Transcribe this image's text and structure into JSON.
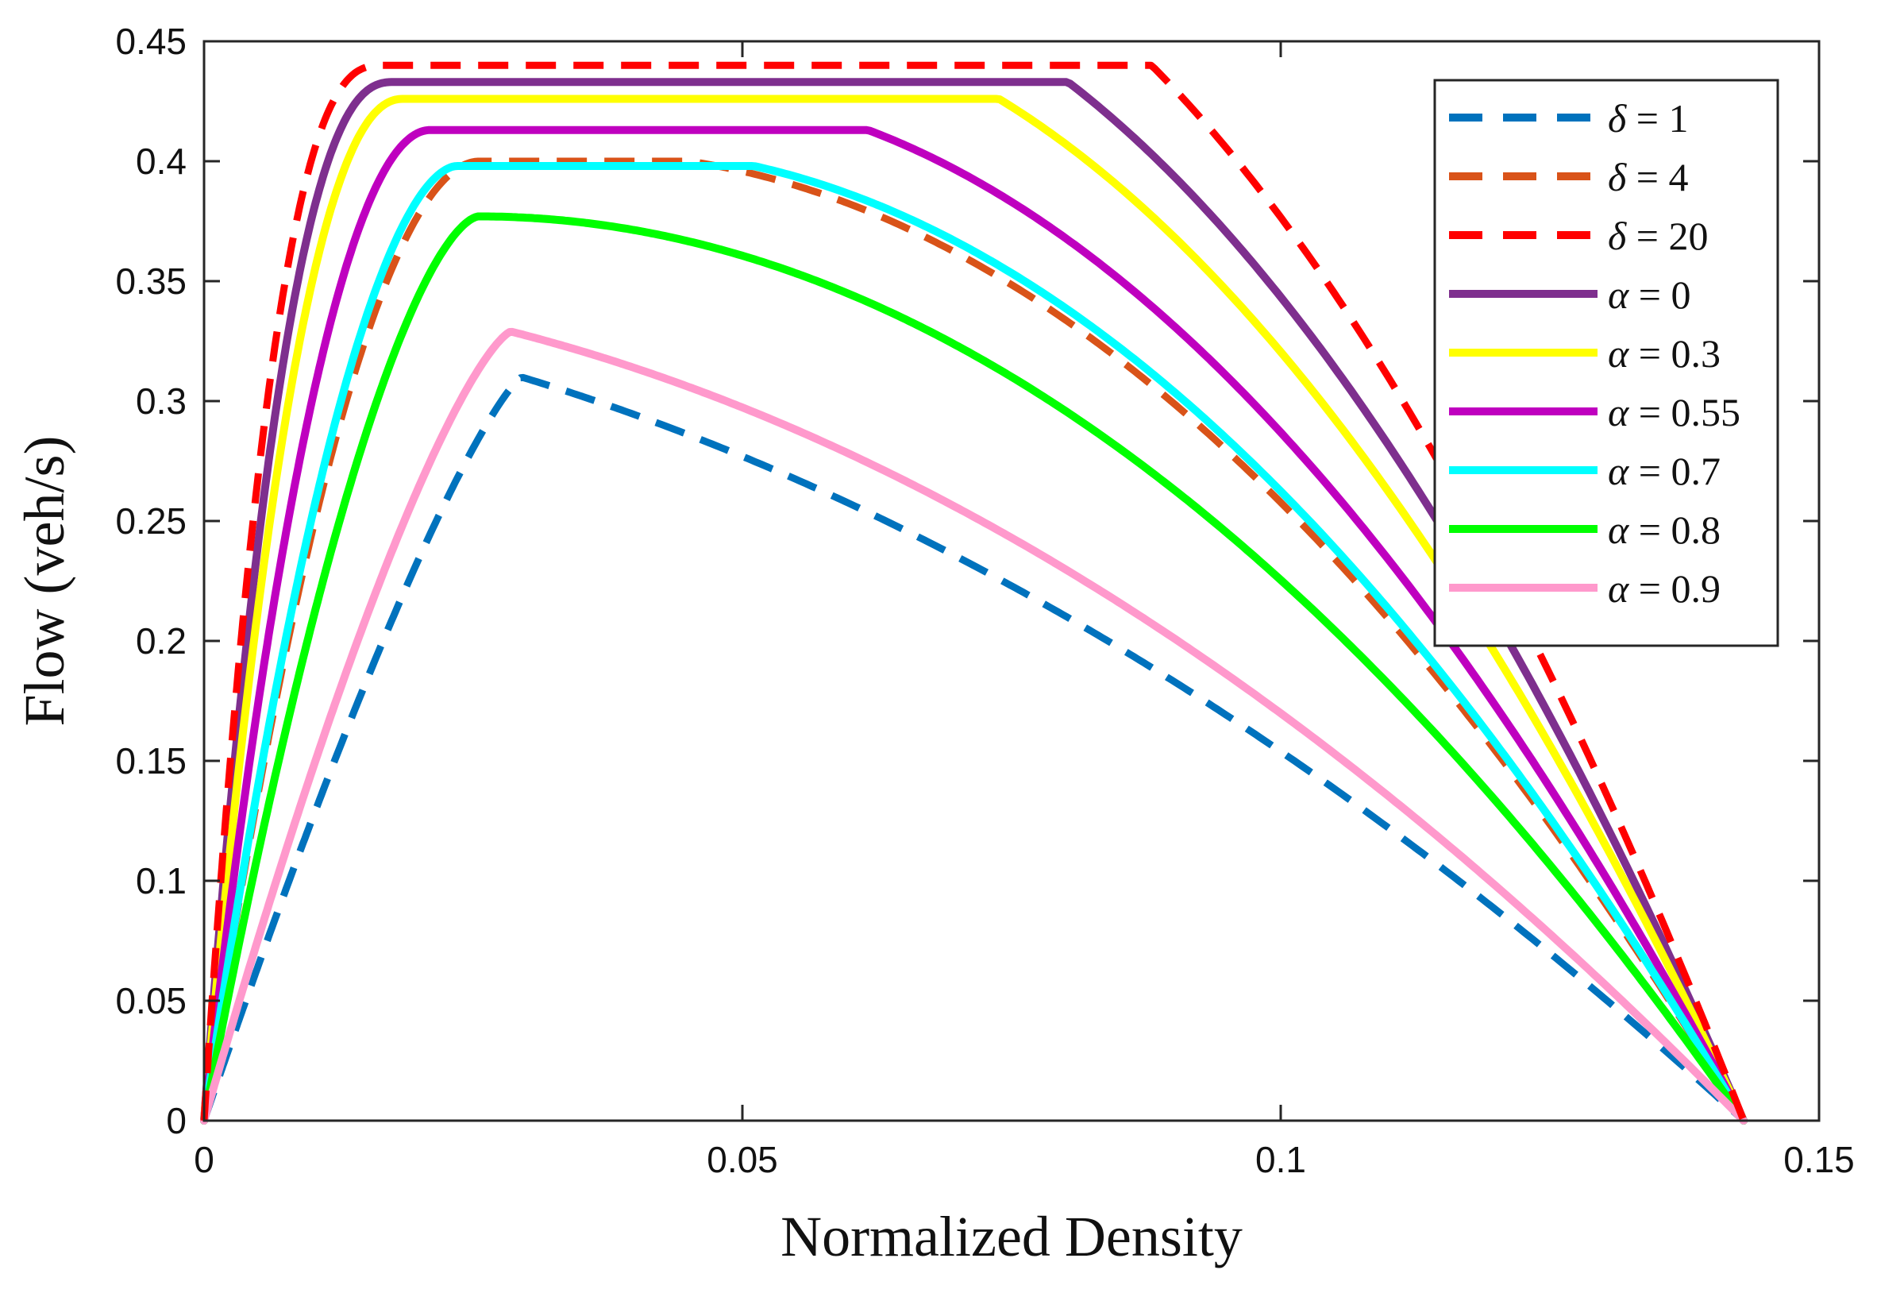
{
  "chart_data": {
    "type": "line",
    "title": "",
    "xlabel": "Normalized Density",
    "ylabel": "Flow (veh/s)",
    "xlim": [
      0,
      0.15
    ],
    "ylim": [
      0,
      0.45
    ],
    "xticks": [
      0,
      0.05,
      0.1,
      0.15
    ],
    "xtick_labels": [
      "0",
      "0.05",
      "0.1",
      "0.15"
    ],
    "yticks": [
      0,
      0.05,
      0.1,
      0.15,
      0.2,
      0.25,
      0.3,
      0.35,
      0.4,
      0.45
    ],
    "ytick_labels": [
      "0",
      "0.05",
      "0.1",
      "0.15",
      "0.2",
      "0.25",
      "0.3",
      "0.35",
      "0.4",
      "0.45"
    ],
    "grid": false,
    "legend_position": "top-right",
    "series": [
      {
        "name": "δ = 1",
        "symbol": "δ",
        "value_text": " = 1",
        "color": "#0072BD",
        "style": "dashed",
        "peak_x": 0.0295,
        "peak_y": 0.31,
        "p": 1.25,
        "q": 0.5
      },
      {
        "name": "δ = 4",
        "symbol": "δ",
        "value_text": " = 4",
        "color": "#D95319",
        "style": "dashed",
        "peak_x": 0.0255,
        "peak_y": 0.4,
        "p": 1.9,
        "q": 1.2
      },
      {
        "name": "δ = 20",
        "symbol": "δ",
        "value_text": " = 20",
        "color": "#FF0000",
        "style": "dashed",
        "peak_x": 0.0165,
        "peak_y": 0.44,
        "p": 2.6,
        "q": 2.3
      },
      {
        "name": "α = 0",
        "symbol": "α",
        "value_text": " = 0",
        "color": "#7E2F8E",
        "style": "solid",
        "peak_x": 0.0175,
        "peak_y": 0.433,
        "p": 2.4,
        "q": 2.0
      },
      {
        "name": "α = 0.3",
        "symbol": "α",
        "value_text": " = 0.3",
        "color": "#FFFF00",
        "style": "solid",
        "peak_x": 0.0185,
        "peak_y": 0.426,
        "p": 2.2,
        "q": 1.8
      },
      {
        "name": "α = 0.55",
        "symbol": "α",
        "value_text": " = 0.55",
        "color": "#BF00BF",
        "style": "solid",
        "peak_x": 0.021,
        "peak_y": 0.413,
        "p": 2.0,
        "q": 1.5
      },
      {
        "name": "α = 0.7",
        "symbol": "α",
        "value_text": " = 0.7",
        "color": "#00FFFF",
        "style": "solid",
        "peak_x": 0.0235,
        "peak_y": 0.398,
        "p": 1.8,
        "q": 1.3
      },
      {
        "name": "α = 0.8",
        "symbol": "α",
        "value_text": " = 0.8",
        "color": "#00FF00",
        "style": "solid",
        "peak_x": 0.0255,
        "peak_y": 0.377,
        "p": 1.6,
        "q": 1.0
      },
      {
        "name": "α = 0.9",
        "symbol": "α",
        "value_text": " = 0.9",
        "color": "#FF99CC",
        "style": "solid",
        "peak_x": 0.0285,
        "peak_y": 0.329,
        "p": 1.35,
        "q": 0.6
      }
    ],
    "end_x": 0.143
  }
}
